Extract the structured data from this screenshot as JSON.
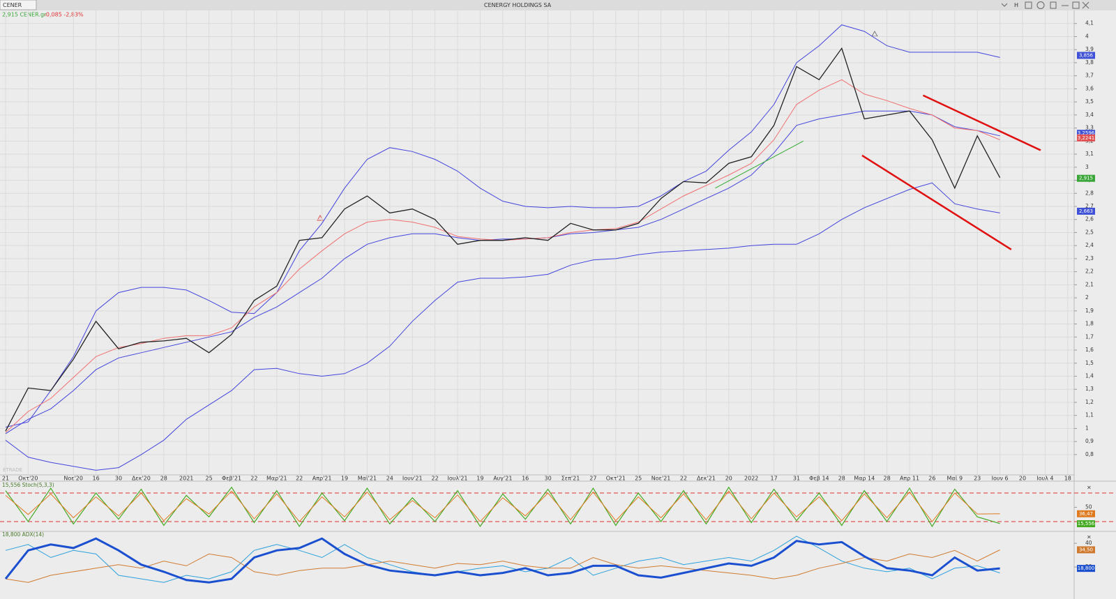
{
  "header": {
    "symbol": "CENER",
    "title": "CENERGY HOLDINGS SA",
    "mode": "H",
    "quote": "2,915 CENER.gr",
    "change": "-0,085 -2,83%",
    "watermark": "ETRADE"
  },
  "chart_data": [
    {
      "type": "line",
      "categories": [
        "21",
        "Οκτ'20",
        null,
        "Νοε'20",
        "16",
        "30",
        "Δεκ'20",
        "28",
        "2021",
        "25",
        "Φεβ'21",
        "22",
        "Μαρ'21",
        "22",
        "Απρ'21",
        "19",
        "Μαϊ'21",
        "24",
        "Ιουν'21",
        "22",
        "Ιουλ'21",
        "19",
        "Αυγ'21",
        "16",
        "30",
        "Σεπ'21",
        "27",
        "Οκτ'21",
        "25",
        "Νοε'21",
        "22",
        "Δεκ'21",
        "20",
        "2022",
        "17",
        "31",
        "Φεβ 14",
        "28",
        "Μαρ 14",
        "28",
        "Απρ 11",
        "26",
        "Μαϊ 9",
        "23",
        "Ιουν 6",
        "20",
        "Ιουλ 4",
        "18"
      ],
      "ylim": [
        0.65,
        4.2
      ],
      "yticks": [
        {
          "value": 0.8,
          "label": "0,8"
        },
        {
          "value": 0.9,
          "label": "0,9"
        },
        1,
        {
          "value": 1.1,
          "label": "1,1"
        },
        {
          "value": 1.2,
          "label": "1,2"
        },
        {
          "value": 1.3,
          "label": "1,3"
        },
        {
          "value": 1.4,
          "label": "1,4"
        },
        {
          "value": 1.5,
          "label": "1,5"
        },
        {
          "value": 1.6,
          "label": "1,6"
        },
        {
          "value": 1.7,
          "label": "1,7"
        },
        {
          "value": 1.8,
          "label": "1,8"
        },
        {
          "value": 1.9,
          "label": "1,9"
        },
        2,
        {
          "value": 2.1,
          "label": "2,1"
        },
        {
          "value": 2.2,
          "label": "2,2"
        },
        {
          "value": 2.3,
          "label": "2,3"
        },
        {
          "value": 2.4,
          "label": "2,4"
        },
        {
          "value": 2.5,
          "label": "2,5"
        },
        {
          "value": 2.6,
          "label": "2,6"
        },
        {
          "value": 2.7,
          "label": "2,7"
        },
        {
          "value": 2.8,
          "label": "2,8"
        },
        {
          "value": 2.9,
          "label": "2,9"
        },
        3,
        {
          "value": 3.1,
          "label": "3,1"
        },
        {
          "value": 3.2,
          "label": "3,2"
        },
        {
          "value": 3.3,
          "label": "3,3"
        },
        {
          "value": 3.4,
          "label": "3,4"
        },
        {
          "value": 3.5,
          "label": "3,5"
        },
        {
          "value": 3.6,
          "label": "3,6"
        },
        {
          "value": 3.7,
          "label": "3,7"
        },
        {
          "value": 3.8,
          "label": "3,8"
        },
        {
          "value": 3.9,
          "label": "3,9"
        },
        4,
        {
          "value": 4.1,
          "label": "4,1"
        }
      ],
      "grid": true,
      "series": [
        {
          "color": "#4444dd",
          "width": 1,
          "values": [
            1.01,
            1.05,
            1.29,
            1.55,
            1.9,
            2.04,
            2.08,
            2.08,
            2.06,
            1.98,
            1.89,
            1.88,
            2.04,
            2.36,
            2.57,
            2.84,
            3.06,
            3.15,
            3.12,
            3.06,
            2.97,
            2.84,
            2.74,
            2.7,
            2.69,
            2.7,
            2.69,
            2.69,
            2.7,
            2.78,
            2.89,
            2.97,
            3.13,
            3.27,
            3.48,
            3.8,
            3.93,
            4.09,
            4.04,
            3.93,
            3.88,
            3.88,
            3.88,
            3.88,
            3.84,
            null,
            null,
            null
          ]
        },
        {
          "color": "#4444dd",
          "width": 1,
          "values": [
            0.91,
            0.78,
            0.74,
            0.71,
            0.68,
            0.7,
            0.8,
            0.91,
            1.07,
            1.18,
            1.29,
            1.45,
            1.46,
            1.42,
            1.4,
            1.42,
            1.5,
            1.63,
            1.82,
            1.98,
            2.12,
            2.15,
            2.15,
            2.16,
            2.18,
            2.25,
            2.29,
            2.3,
            2.33,
            2.35,
            2.36,
            2.37,
            2.38,
            2.4,
            2.41,
            2.41,
            2.49,
            2.6,
            2.69,
            2.76,
            2.83,
            2.88,
            2.72,
            2.68,
            2.65,
            null,
            null,
            null
          ]
        },
        {
          "color": "#4444dd",
          "width": 1,
          "values": [
            0.96,
            1.07,
            1.15,
            1.29,
            1.45,
            1.54,
            1.58,
            1.62,
            1.66,
            1.7,
            1.74,
            1.85,
            1.93,
            2.04,
            2.15,
            2.3,
            2.41,
            2.46,
            2.49,
            2.49,
            2.46,
            2.44,
            2.45,
            2.45,
            2.46,
            2.49,
            2.5,
            2.52,
            2.54,
            2.6,
            2.68,
            2.76,
            2.84,
            2.94,
            3.11,
            3.32,
            3.37,
            3.4,
            3.43,
            3.43,
            3.43,
            3.4,
            3.31,
            3.28,
            3.24,
            null,
            null,
            null
          ]
        },
        {
          "color": "#f07070",
          "width": 1,
          "values": [
            0.97,
            1.13,
            1.23,
            1.39,
            1.55,
            1.62,
            1.65,
            1.69,
            1.71,
            1.71,
            1.77,
            1.93,
            2.04,
            2.22,
            2.36,
            2.49,
            2.58,
            2.6,
            2.58,
            2.54,
            2.47,
            2.45,
            2.44,
            2.45,
            2.46,
            2.5,
            2.52,
            2.53,
            2.58,
            2.68,
            2.78,
            2.86,
            2.94,
            3.03,
            3.21,
            3.48,
            3.59,
            3.67,
            3.56,
            3.51,
            3.45,
            3.4,
            3.3,
            3.28,
            3.21,
            null,
            null,
            null
          ]
        },
        {
          "color": "#222222",
          "width": 1.3,
          "values": [
            0.98,
            1.31,
            1.29,
            1.53,
            1.82,
            1.61,
            1.66,
            1.67,
            1.69,
            1.58,
            1.72,
            1.98,
            2.09,
            2.44,
            2.46,
            2.68,
            2.78,
            2.65,
            2.68,
            2.6,
            2.41,
            2.44,
            2.44,
            2.46,
            2.44,
            2.57,
            2.52,
            2.52,
            2.57,
            2.76,
            2.89,
            2.88,
            3.03,
            3.08,
            3.32,
            3.77,
            3.67,
            3.91,
            3.37,
            3.4,
            3.43,
            3.21,
            2.84,
            3.24,
            2.92,
            null,
            null,
            null
          ]
        }
      ],
      "trendlines": [
        {
          "color": "#e01010",
          "width": 2.5,
          "x": [
            40.6,
            45.8
          ],
          "y": [
            3.55,
            3.13
          ]
        },
        {
          "color": "#e01010",
          "width": 2.5,
          "x": [
            37.9,
            44.5
          ],
          "y": [
            3.09,
            2.37
          ]
        },
        {
          "color": "#33aa33",
          "width": 1,
          "x": [
            31.4,
            35.3
          ],
          "y": [
            2.84,
            3.2
          ]
        }
      ],
      "badges": [
        {
          "value": 3.856,
          "label": "3,856",
          "color": "#3f51d6"
        },
        {
          "value": 3.2596,
          "label": "3,2596",
          "color": "#3f51d6"
        },
        {
          "value": 3.2241,
          "label": "3,2241",
          "color": "#e05050"
        },
        {
          "value": 2.915,
          "label": "2,915",
          "color": "#3aa63a"
        },
        {
          "value": 2.663,
          "label": "2,663",
          "color": "#3f51d6"
        }
      ]
    },
    {
      "type": "line",
      "title": "15,556 Stoch(5,3,3)",
      "ylim": [
        0,
        100
      ],
      "yticks": [
        50
      ],
      "levels": [
        20,
        80
      ],
      "level_color": "#e03030",
      "series": [
        {
          "color": "#44aa22",
          "width": 1.2,
          "values": [
            85,
            20,
            90,
            15,
            80,
            25,
            88,
            12,
            75,
            30,
            92,
            18,
            85,
            10,
            80,
            22,
            90,
            15,
            70,
            20,
            85,
            10,
            78,
            25,
            88,
            15,
            90,
            12,
            80,
            20,
            85,
            15,
            92,
            18,
            88,
            22,
            80,
            12,
            85,
            20,
            90,
            10,
            88,
            30,
            16,
            null,
            null,
            null
          ]
        },
        {
          "color": "#e07a20",
          "width": 1,
          "values": [
            75,
            35,
            78,
            28,
            72,
            32,
            80,
            22,
            68,
            36,
            84,
            26,
            78,
            20,
            72,
            30,
            82,
            24,
            64,
            28,
            76,
            20,
            70,
            32,
            80,
            24,
            82,
            22,
            72,
            28,
            78,
            24,
            84,
            26,
            80,
            30,
            72,
            22,
            78,
            28,
            82,
            20,
            80,
            36,
            36.47,
            null,
            null,
            null
          ]
        }
      ],
      "badges": [
        {
          "value": 36.47,
          "label": "36,47",
          "color": "#e07a20"
        },
        {
          "value": 15.556,
          "label": "15,556",
          "color": "#44aa22"
        }
      ]
    },
    {
      "type": "line",
      "title": "18,800 ADX(14)",
      "ylim": [
        3,
        48
      ],
      "yticks": [
        20,
        40
      ],
      "series": [
        {
          "color": "#2aa0dd",
          "width": 1,
          "values": [
            34,
            39,
            28,
            34,
            31,
            13,
            10,
            7,
            13,
            10,
            16,
            34,
            39,
            34,
            28,
            39,
            28,
            22,
            16,
            13,
            16,
            19,
            21,
            16,
            19,
            28,
            13,
            19,
            25,
            28,
            22,
            25,
            28,
            25,
            34,
            46,
            36,
            25,
            19,
            16,
            19,
            10,
            19,
            21,
            15,
            null,
            null,
            null
          ]
        },
        {
          "color": "#d07a30",
          "width": 1,
          "values": [
            10,
            7,
            13,
            16,
            19,
            22,
            19,
            25,
            21,
            31,
            28,
            16,
            13,
            17,
            19,
            19,
            22,
            25,
            22,
            19,
            23,
            22,
            25,
            21,
            19,
            19,
            28,
            22,
            19,
            21,
            19,
            17,
            15,
            13,
            10,
            13,
            19,
            23,
            28,
            25,
            31,
            28,
            34,
            25,
            34.5,
            null,
            null,
            null
          ]
        },
        {
          "color": "#1a4fd0",
          "width": 3,
          "values": [
            10,
            34,
            39,
            36,
            44,
            34,
            22,
            16,
            9,
            7,
            10,
            28,
            34,
            36,
            44,
            31,
            22,
            17,
            15,
            13,
            16,
            13,
            15,
            19,
            13,
            15,
            21,
            21,
            13,
            11,
            15,
            19,
            23,
            21,
            28,
            42,
            39,
            41,
            29,
            19,
            17,
            13,
            28,
            17,
            18.8,
            null,
            null,
            null
          ]
        }
      ],
      "badges": [
        {
          "value": 34.5,
          "label": "34,50",
          "color": "#d07a30"
        },
        {
          "value": 18.8,
          "label": "18,800",
          "color": "#1a4fd0"
        }
      ]
    }
  ]
}
